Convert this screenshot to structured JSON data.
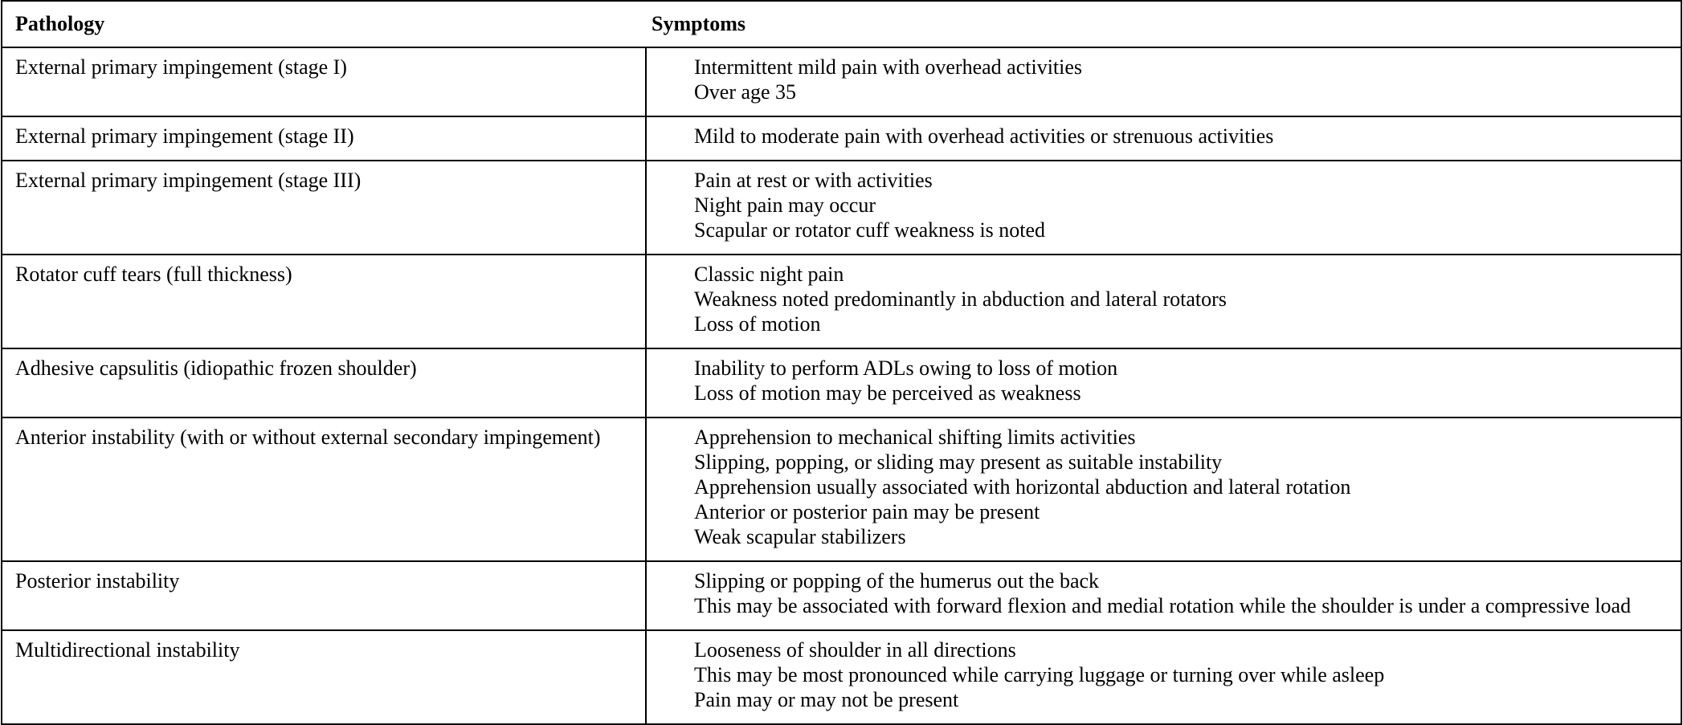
{
  "table": {
    "headers": [
      "Pathology",
      "Symptoms"
    ],
    "rows": [
      {
        "pathology": "External primary impingement (stage I)",
        "symptoms": [
          "Intermittent mild pain with overhead activities",
          "Over age 35"
        ]
      },
      {
        "pathology": "External primary impingement (stage II)",
        "symptoms": [
          "Mild to moderate pain with overhead activities or strenuous activities"
        ]
      },
      {
        "pathology": "External primary impingement (stage III)",
        "symptoms": [
          "Pain at rest or with activities",
          "Night pain may occur",
          "Scapular or rotator cuff weakness is noted"
        ]
      },
      {
        "pathology": "Rotator cuff tears (full thickness)",
        "symptoms": [
          "Classic night pain",
          "Weakness noted predominantly in abduction and lateral rotators",
          "Loss of motion"
        ]
      },
      {
        "pathology": "Adhesive capsulitis (idiopathic frozen shoulder)",
        "symptoms": [
          "Inability to perform ADLs owing to loss of motion",
          "Loss of motion may be perceived as weakness"
        ]
      },
      {
        "pathology": "Anterior instability (with or without external secondary impingement)",
        "symptoms": [
          "Apprehension to mechanical shifting limits activities",
          "Slipping, popping, or sliding may present as suitable instability",
          "Apprehension usually associated with horizontal abduction and lateral rotation",
          "Anterior or posterior pain may be present",
          "Weak scapular stabilizers"
        ]
      },
      {
        "pathology": "Posterior instability",
        "symptoms": [
          "Slipping or popping of the humerus out the back",
          "This may be associated with forward flexion and medial rotation while the shoulder is under a compressive load"
        ]
      },
      {
        "pathology": "Multidirectional instability",
        "symptoms": [
          "Looseness of shoulder in all directions",
          "This may be most pronounced while carrying luggage or turning over while asleep",
          "Pain may or may not be present"
        ]
      }
    ]
  }
}
